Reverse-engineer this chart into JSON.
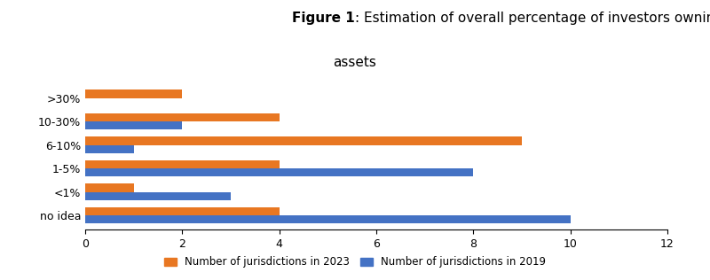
{
  "title_bold": "Figure 1",
  "title_rest": ": Estimation of overall percentage of investors owning crypto-\nassets",
  "categories": [
    "no idea",
    "<1%",
    "1-5%",
    "6-10%",
    "10-30%",
    ">30%"
  ],
  "values_2023": [
    4,
    1,
    4,
    9,
    4,
    2
  ],
  "values_2019": [
    10,
    3,
    8,
    1,
    2,
    0
  ],
  "color_2023": "#E87722",
  "color_2019": "#4472C4",
  "legend_2023": "Number of jurisdictions in 2023",
  "legend_2019": "Number of jurisdictions in 2019",
  "xlim": [
    0,
    12
  ],
  "xticks": [
    0,
    2,
    4,
    6,
    8,
    10,
    12
  ],
  "bar_height": 0.35,
  "background_color": "#ffffff",
  "title_fontsize": 11,
  "axis_fontsize": 9,
  "legend_fontsize": 8.5
}
